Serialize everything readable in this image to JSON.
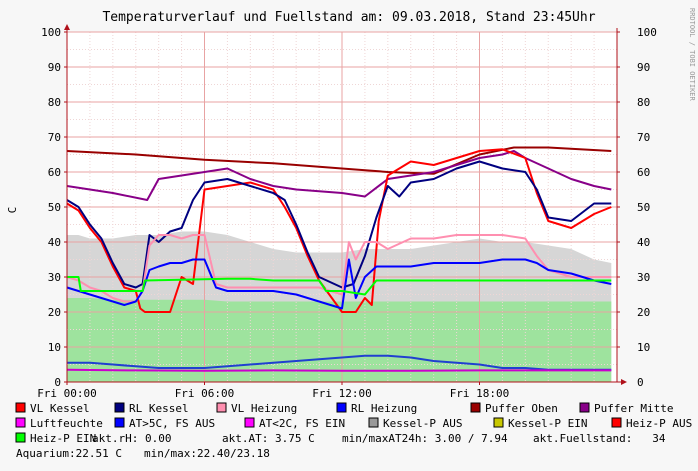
{
  "title": "Temperaturverlauf und Fuellstand am: 09.03.2018, Stand 23:45Uhr",
  "watermark": "RRDTOOL / TOBI OETIKER",
  "colors": {
    "background": "#f7f7f7",
    "plot_bg": "#ffffff",
    "grid_minor": "#efd6d6",
    "grid_major": "#e8a3a3",
    "axis": "#b0101a",
    "fill_grey": "#d6d6d6",
    "fill_green": "#9ee39e"
  },
  "legend": [
    {
      "label": "VL Kessel",
      "color": "#ff0000"
    },
    {
      "label": "RL Kessel",
      "color": "#000080"
    },
    {
      "label": "VL Heizung",
      "color": "#ff8fb0"
    },
    {
      "label": "RL Heizung",
      "color": "#0000ff"
    },
    {
      "label": "Puffer Oben",
      "color": "#990000"
    },
    {
      "label": "Puffer Mitte",
      "color": "#880088"
    },
    {
      "label": "Luftfeuchte",
      "color": "#ff00ff"
    },
    {
      "label": "AT>5C, FS AUS",
      "color": "#0000ff"
    },
    {
      "label": "AT<2C, FS EIN",
      "color": "#ff00ff"
    },
    {
      "label": "Kessel-P AUS",
      "color": "#999999"
    },
    {
      "label": "Kessel-P EIN",
      "color": "#c8c800"
    },
    {
      "label": "Heiz-P AUS",
      "color": "#ff0000"
    },
    {
      "label": "Heiz-P EIN",
      "color": "#00ff00"
    }
  ],
  "info": {
    "rh": "akt.rH: 0.00",
    "at": "akt.AT: 3.75 C",
    "minmax_at": "min/maxAT24h: 3.00 / 7.94",
    "fuellstand": "akt.Fuellstand:   34",
    "aquarium": "Aquarium:22.51 C",
    "aquarium_minmax": "min/max:22.40/23.18"
  },
  "chart_data": {
    "type": "line",
    "title": "Temperaturverlauf und Fuellstand am: 09.03.2018, Stand 23:45Uhr",
    "ylabel": "C",
    "ylim": [
      0,
      100
    ],
    "xlim": [
      0,
      24
    ],
    "yticks": [
      0,
      10,
      20,
      30,
      40,
      50,
      60,
      70,
      80,
      90,
      100
    ],
    "xticks": [
      {
        "value": 0,
        "label": "Fri 00:00"
      },
      {
        "value": 6,
        "label": "Fri 06:00"
      },
      {
        "value": 12,
        "label": "Fri 12:00"
      },
      {
        "value": 18,
        "label": "Fri 18:00"
      }
    ],
    "grid": true,
    "legend_position": "bottom",
    "series": [
      {
        "name": "Kessel-P AUS",
        "kind": "area",
        "color": "#d6d6d6",
        "x": [
          0,
          0.5,
          1,
          2,
          3,
          4,
          5,
          6,
          7,
          8,
          9,
          10,
          11,
          12,
          13,
          14,
          15,
          16,
          17,
          18,
          19,
          20,
          21,
          22,
          23,
          23.75
        ],
        "y": [
          42,
          42,
          41,
          41,
          42,
          42,
          43,
          43,
          42,
          40,
          38,
          37,
          37,
          37,
          38,
          38,
          38,
          39,
          40,
          41,
          40,
          40,
          39,
          38,
          35,
          34
        ]
      },
      {
        "name": "Heiz-P EIN",
        "kind": "area",
        "color": "#9ee39e",
        "x": [
          0,
          0.5,
          1,
          2,
          3,
          4,
          5,
          6,
          7,
          8,
          9,
          10,
          11,
          12,
          13,
          14,
          15,
          16,
          17,
          18,
          19,
          20,
          21,
          22,
          23,
          23.75
        ],
        "y": [
          24,
          24,
          24,
          23.5,
          23.5,
          23.5,
          23.5,
          23.5,
          23,
          23,
          23,
          23,
          23,
          23,
          23,
          23,
          23,
          23,
          23,
          23,
          23,
          23,
          23,
          23,
          23,
          23
        ]
      },
      {
        "name": "Puffer Oben",
        "kind": "line",
        "color": "#990000",
        "x": [
          0,
          3,
          6,
          9,
          12,
          14,
          16,
          18,
          19.5,
          21,
          23.75
        ],
        "y": [
          66,
          65,
          63.5,
          62.5,
          61,
          60,
          59.5,
          65,
          67,
          67,
          66
        ]
      },
      {
        "name": "Puffer Mitte",
        "kind": "line",
        "color": "#880088",
        "x": [
          0,
          2,
          3.5,
          4,
          5,
          6,
          7,
          8,
          9,
          10,
          11,
          12,
          13,
          14,
          15,
          16,
          17,
          18,
          19,
          19.5,
          20,
          21,
          22,
          23,
          23.75
        ],
        "y": [
          56,
          54,
          52,
          58,
          59,
          60,
          61,
          58,
          56,
          55,
          54.5,
          54,
          53,
          58,
          59,
          60,
          62,
          64,
          65,
          66,
          64,
          61,
          58,
          56,
          55
        ]
      },
      {
        "name": "VL Kessel",
        "kind": "line",
        "color": "#ff0000",
        "x": [
          0,
          0.5,
          1,
          1.5,
          2,
          2.5,
          3,
          3.2,
          3.4,
          3.6,
          4,
          4.5,
          5,
          5.5,
          6,
          7,
          8,
          9,
          9.5,
          10,
          10.5,
          11,
          12,
          12.3,
          12.6,
          13,
          13.3,
          13.6,
          14,
          14.5,
          15,
          16,
          17,
          18,
          19,
          20,
          20.5,
          21,
          22,
          23,
          23.75
        ],
        "y": [
          51,
          49,
          44,
          40,
          33,
          27,
          26,
          21,
          20,
          20,
          20,
          20,
          30,
          28,
          55,
          56,
          57,
          55,
          50,
          44,
          36,
          29,
          20,
          20,
          20,
          24,
          22,
          46,
          59,
          61,
          63,
          62,
          64,
          66,
          66.5,
          64,
          54,
          46,
          44,
          48,
          50
        ]
      },
      {
        "name": "RL Kessel",
        "kind": "line",
        "color": "#000080",
        "x": [
          0,
          0.5,
          1,
          1.5,
          2,
          2.5,
          3,
          3.3,
          3.6,
          4,
          4.5,
          5,
          5.5,
          6,
          7,
          8,
          9,
          9.5,
          10,
          10.5,
          11,
          12,
          12.5,
          13,
          13.5,
          14,
          14.5,
          15,
          16,
          17,
          18,
          19,
          20,
          20.5,
          21,
          22,
          23,
          23.75
        ],
        "y": [
          52,
          50,
          45,
          41,
          34,
          28,
          27,
          28,
          42,
          40,
          43,
          44,
          52,
          57,
          58,
          56,
          54,
          52,
          45,
          37,
          30,
          27,
          28,
          36,
          47,
          56,
          53,
          57,
          58,
          61,
          63,
          61,
          60,
          55,
          47,
          46,
          51,
          51
        ]
      },
      {
        "name": "VL Heizung",
        "kind": "line",
        "color": "#ff8fb0",
        "x": [
          0,
          0.5,
          1,
          1.5,
          2,
          2.5,
          3,
          3.3,
          3.6,
          4,
          4.5,
          5,
          5.5,
          6,
          6.5,
          7,
          7.5,
          8,
          9,
          10,
          11,
          11.5,
          12,
          12.3,
          12.6,
          13,
          13.5,
          14,
          15,
          16,
          17,
          18,
          19,
          20,
          20.5,
          21,
          22,
          23,
          23.75
        ],
        "y": [
          30,
          29,
          27,
          26,
          24,
          23,
          23,
          26,
          39,
          42,
          42,
          41,
          42,
          42,
          28,
          27,
          27,
          27,
          27,
          27,
          27,
          26,
          25,
          40,
          35,
          40,
          40,
          38,
          41,
          41,
          42,
          42,
          42,
          41,
          36,
          32,
          30,
          30,
          30
        ]
      },
      {
        "name": "RL Heizung",
        "kind": "line",
        "color": "#0000ff",
        "x": [
          0,
          0.5,
          1,
          1.5,
          2,
          2.5,
          3,
          3.3,
          3.6,
          4,
          4.5,
          5,
          5.5,
          6,
          6.5,
          7,
          7.5,
          8,
          9,
          10,
          10.5,
          11,
          11.5,
          12,
          12.3,
          12.6,
          13,
          13.5,
          14,
          15,
          16,
          17,
          18,
          19,
          20,
          20.5,
          21,
          22,
          23,
          23.75
        ],
        "y": [
          27,
          26,
          25,
          24,
          23,
          22,
          23,
          26,
          32,
          33,
          34,
          34,
          35,
          35,
          27,
          26,
          26,
          26,
          26,
          25,
          24,
          23,
          22,
          21,
          35,
          24,
          30,
          33,
          33,
          33,
          34,
          34,
          34,
          35,
          35,
          34,
          32,
          31,
          29,
          28
        ]
      },
      {
        "name": "Heiz-P EIN",
        "kind": "line",
        "color": "#00ff00",
        "x": [
          0,
          0.5,
          0.6,
          3.3,
          3.4,
          7,
          8,
          9,
          10,
          11,
          11.3,
          12,
          13,
          13.5,
          14,
          16,
          18,
          20,
          22,
          23.75
        ],
        "y": [
          30,
          30,
          26,
          26,
          29,
          29.5,
          29.5,
          29,
          29,
          29,
          26,
          26,
          25,
          29,
          29,
          29,
          29,
          29,
          29,
          29
        ]
      },
      {
        "name": "AT>5C, FS AUS",
        "kind": "line",
        "color": "#2040d0",
        "x": [
          0,
          1,
          2,
          3,
          4,
          5,
          6,
          7,
          8,
          9,
          10,
          11,
          12,
          13,
          14,
          15,
          16,
          17,
          18,
          19,
          20,
          21,
          22,
          23,
          23.75
        ],
        "y": [
          5.5,
          5.5,
          5,
          4.5,
          4,
          4,
          4,
          4.5,
          5,
          5.5,
          6,
          6.5,
          7,
          7.5,
          7.5,
          7,
          6,
          5.5,
          5,
          4,
          4,
          3.5,
          3.5,
          3.5,
          3.5
        ]
      },
      {
        "name": "Luftfeuchte",
        "kind": "line",
        "color": "#cc00cc",
        "x": [
          0,
          3,
          6,
          9,
          12,
          15,
          18,
          21,
          23.75
        ],
        "y": [
          3.5,
          3.3,
          3.2,
          3.3,
          3.2,
          3.2,
          3.3,
          3.3,
          3.3
        ]
      }
    ]
  }
}
